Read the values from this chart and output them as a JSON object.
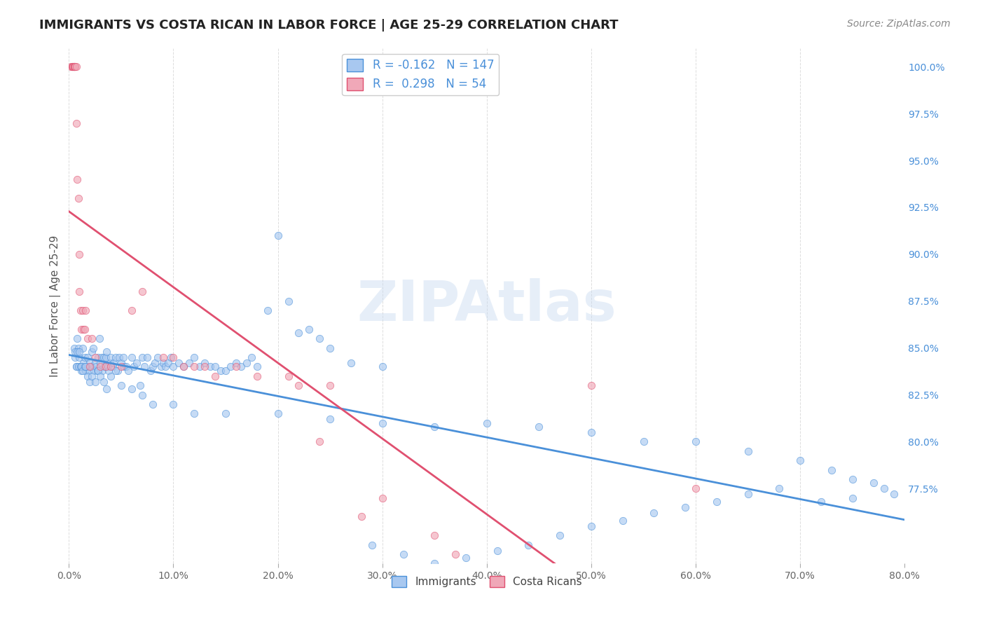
{
  "title": "IMMIGRANTS VS COSTA RICAN IN LABOR FORCE | AGE 25-29 CORRELATION CHART",
  "source": "Source: ZipAtlas.com",
  "ylabel": "In Labor Force | Age 25-29",
  "xlabel_immigrants": "Immigrants",
  "xlabel_costa_ricans": "Costa Ricans",
  "x_ticks_labels": [
    "0.0%",
    "10.0%",
    "20.0%",
    "30.0%",
    "40.0%",
    "50.0%",
    "60.0%",
    "70.0%",
    "80.0%"
  ],
  "x_ticks_vals": [
    0.0,
    0.1,
    0.2,
    0.3,
    0.4,
    0.5,
    0.6,
    0.7,
    0.8
  ],
  "y_ticks_labels": [
    "77.5%",
    "80.0%",
    "82.5%",
    "85.0%",
    "87.5%",
    "90.0%",
    "92.5%",
    "95.0%",
    "97.5%",
    "100.0%"
  ],
  "y_ticks_vals": [
    0.775,
    0.8,
    0.825,
    0.85,
    0.875,
    0.9,
    0.925,
    0.95,
    0.975,
    1.0
  ],
  "x_min": 0.0,
  "x_max": 0.8,
  "y_min": 0.735,
  "y_max": 1.01,
  "immigrants_R": -0.162,
  "immigrants_N": 147,
  "costa_ricans_R": 0.298,
  "costa_ricans_N": 54,
  "immigrant_color": "#a8c8f0",
  "costa_rican_color": "#f0a8b8",
  "trend_immigrant_color": "#4a90d9",
  "trend_costa_rican_color": "#e05070",
  "grid_color": "#dddddd",
  "watermark_color": "#ccddee",
  "title_fontsize": 13,
  "source_fontsize": 10,
  "label_fontsize": 11,
  "tick_fontsize": 10,
  "scatter_size": 55,
  "scatter_alpha": 0.65,
  "immigrants_x": [
    0.005,
    0.006,
    0.007,
    0.008,
    0.009,
    0.01,
    0.011,
    0.012,
    0.013,
    0.014,
    0.015,
    0.016,
    0.017,
    0.018,
    0.019,
    0.02,
    0.021,
    0.022,
    0.023,
    0.024,
    0.025,
    0.026,
    0.027,
    0.028,
    0.029,
    0.03,
    0.031,
    0.032,
    0.033,
    0.034,
    0.035,
    0.036,
    0.037,
    0.038,
    0.039,
    0.04,
    0.042,
    0.043,
    0.045,
    0.047,
    0.048,
    0.05,
    0.052,
    0.053,
    0.055,
    0.057,
    0.06,
    0.062,
    0.065,
    0.068,
    0.07,
    0.072,
    0.075,
    0.078,
    0.08,
    0.082,
    0.085,
    0.088,
    0.09,
    0.092,
    0.095,
    0.098,
    0.1,
    0.105,
    0.11,
    0.115,
    0.12,
    0.125,
    0.13,
    0.135,
    0.14,
    0.145,
    0.15,
    0.155,
    0.16,
    0.165,
    0.17,
    0.175,
    0.18,
    0.19,
    0.2,
    0.21,
    0.22,
    0.23,
    0.24,
    0.25,
    0.27,
    0.3,
    0.006,
    0.007,
    0.008,
    0.009,
    0.01,
    0.011,
    0.012,
    0.013,
    0.015,
    0.016,
    0.018,
    0.02,
    0.022,
    0.025,
    0.028,
    0.03,
    0.033,
    0.036,
    0.04,
    0.045,
    0.05,
    0.06,
    0.07,
    0.08,
    0.1,
    0.12,
    0.15,
    0.2,
    0.25,
    0.3,
    0.35,
    0.4,
    0.45,
    0.5,
    0.55,
    0.6,
    0.65,
    0.7,
    0.73,
    0.75,
    0.77,
    0.78,
    0.79,
    0.75,
    0.72,
    0.68,
    0.65,
    0.62,
    0.59,
    0.56,
    0.53,
    0.5,
    0.47,
    0.44,
    0.41,
    0.38,
    0.35,
    0.32,
    0.29
  ],
  "immigrants_y": [
    0.85,
    0.845,
    0.84,
    0.855,
    0.85,
    0.845,
    0.84,
    0.838,
    0.85,
    0.842,
    0.845,
    0.838,
    0.84,
    0.845,
    0.838,
    0.842,
    0.84,
    0.848,
    0.85,
    0.838,
    0.842,
    0.84,
    0.838,
    0.845,
    0.855,
    0.842,
    0.845,
    0.838,
    0.845,
    0.84,
    0.845,
    0.848,
    0.84,
    0.838,
    0.842,
    0.845,
    0.84,
    0.842,
    0.845,
    0.838,
    0.845,
    0.842,
    0.845,
    0.84,
    0.84,
    0.838,
    0.845,
    0.84,
    0.842,
    0.83,
    0.845,
    0.84,
    0.845,
    0.838,
    0.84,
    0.842,
    0.845,
    0.84,
    0.842,
    0.84,
    0.842,
    0.845,
    0.84,
    0.842,
    0.84,
    0.842,
    0.845,
    0.84,
    0.842,
    0.84,
    0.84,
    0.838,
    0.838,
    0.84,
    0.842,
    0.84,
    0.842,
    0.845,
    0.84,
    0.87,
    0.91,
    0.875,
    0.858,
    0.86,
    0.855,
    0.85,
    0.842,
    0.84,
    0.848,
    0.84,
    0.848,
    0.84,
    0.848,
    0.84,
    0.84,
    0.838,
    0.84,
    0.84,
    0.835,
    0.832,
    0.835,
    0.832,
    0.838,
    0.835,
    0.832,
    0.828,
    0.835,
    0.838,
    0.83,
    0.828,
    0.825,
    0.82,
    0.82,
    0.815,
    0.815,
    0.815,
    0.812,
    0.81,
    0.808,
    0.81,
    0.808,
    0.805,
    0.8,
    0.8,
    0.795,
    0.79,
    0.785,
    0.78,
    0.778,
    0.775,
    0.772,
    0.77,
    0.768,
    0.775,
    0.772,
    0.768,
    0.765,
    0.762,
    0.758,
    0.755,
    0.75,
    0.745,
    0.742,
    0.738,
    0.735,
    0.74,
    0.745
  ],
  "costa_ricans_x": [
    0.002,
    0.003,
    0.003,
    0.004,
    0.004,
    0.004,
    0.005,
    0.005,
    0.005,
    0.005,
    0.005,
    0.006,
    0.006,
    0.007,
    0.007,
    0.008,
    0.009,
    0.01,
    0.01,
    0.011,
    0.012,
    0.013,
    0.014,
    0.015,
    0.016,
    0.018,
    0.02,
    0.022,
    0.025,
    0.03,
    0.035,
    0.04,
    0.05,
    0.06,
    0.07,
    0.09,
    0.1,
    0.11,
    0.12,
    0.13,
    0.14,
    0.16,
    0.18,
    0.21,
    0.22,
    0.24,
    0.25,
    0.28,
    0.3,
    0.35,
    0.37,
    0.41,
    0.5,
    0.6
  ],
  "costa_ricans_y": [
    1.0,
    1.0,
    1.0,
    1.0,
    1.0,
    1.0,
    1.0,
    1.0,
    1.0,
    1.0,
    1.0,
    1.0,
    1.0,
    1.0,
    0.97,
    0.94,
    0.93,
    0.9,
    0.88,
    0.87,
    0.86,
    0.87,
    0.86,
    0.86,
    0.87,
    0.855,
    0.84,
    0.855,
    0.845,
    0.84,
    0.84,
    0.84,
    0.84,
    0.87,
    0.88,
    0.845,
    0.845,
    0.84,
    0.84,
    0.84,
    0.835,
    0.84,
    0.835,
    0.835,
    0.83,
    0.8,
    0.83,
    0.76,
    0.77,
    0.75,
    0.74,
    0.73,
    0.83,
    0.775
  ]
}
